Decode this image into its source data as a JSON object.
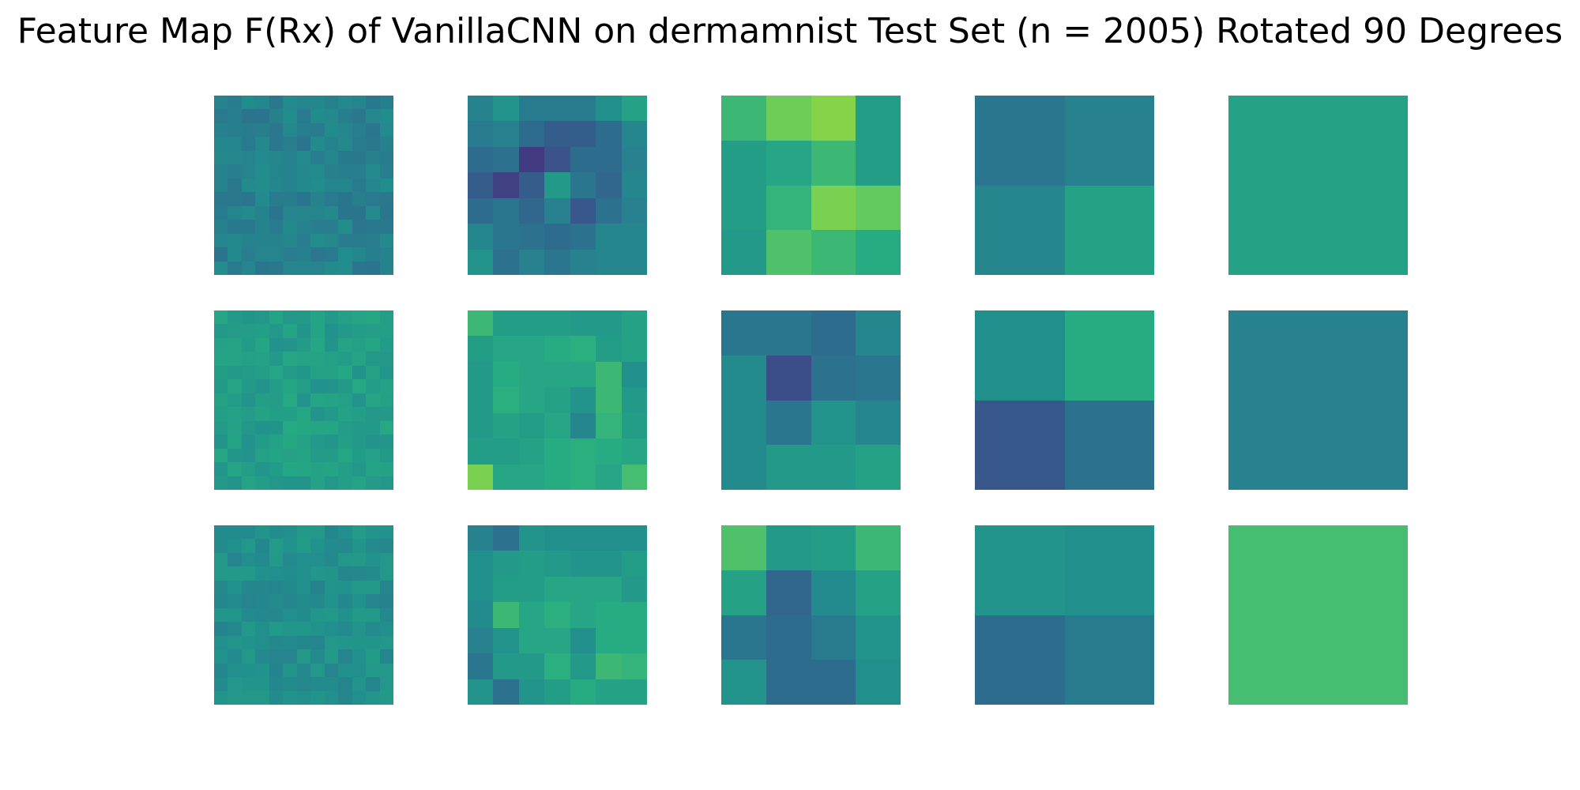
{
  "title": "Feature Map F(Rx) of VanillaCNN on dermamnist Test Set (n = 2005) Rotated 90 Degrees",
  "chart_data": {
    "type": "heatmap",
    "title": "Feature Map F(Rx) of VanillaCNN on dermamnist Test Set (n = 2005) Rotated 90 Degrees",
    "colormap": "viridis",
    "color_range": [
      0,
      1
    ],
    "grid": false,
    "axes_visible": false,
    "rows": 3,
    "cols": 5,
    "panels": [
      [
        {
          "size": 13,
          "base": 0.44,
          "var": 0.05,
          "seed": 1
        },
        {
          "size": 7,
          "base": 0.4,
          "var": 0.14,
          "seed": 2,
          "values": [
            [
              0.45,
              0.52,
              0.42,
              0.42,
              0.42,
              0.5,
              0.58
            ],
            [
              0.42,
              0.44,
              0.36,
              0.3,
              0.3,
              0.36,
              0.46
            ],
            [
              0.36,
              0.38,
              0.18,
              0.26,
              0.36,
              0.36,
              0.44
            ],
            [
              0.3,
              0.2,
              0.3,
              0.54,
              0.4,
              0.34,
              0.46
            ],
            [
              0.36,
              0.4,
              0.34,
              0.44,
              0.28,
              0.38,
              0.44
            ],
            [
              0.46,
              0.4,
              0.38,
              0.36,
              0.38,
              0.46,
              0.46
            ],
            [
              0.52,
              0.38,
              0.44,
              0.4,
              0.44,
              0.46,
              0.46
            ]
          ]
        },
        {
          "size": 4,
          "base": 0.6,
          "values": [
            [
              0.68,
              0.78,
              0.82,
              0.56
            ],
            [
              0.56,
              0.6,
              0.68,
              0.56
            ],
            [
              0.56,
              0.66,
              0.8,
              0.76
            ],
            [
              0.54,
              0.72,
              0.68,
              0.62
            ]
          ]
        },
        {
          "size": 2,
          "base": 0.4,
          "values": [
            [
              0.4,
              0.44
            ],
            [
              0.46,
              0.58
            ]
          ]
        },
        {
          "size": 1,
          "base": 0.58,
          "values": [
            [
              0.58
            ]
          ]
        }
      ],
      [
        {
          "size": 13,
          "base": 0.56,
          "var": 0.05,
          "seed": 11
        },
        {
          "size": 7,
          "base": 0.58,
          "var": 0.06,
          "seed": 12,
          "values": [
            [
              0.68,
              0.56,
              0.56,
              0.56,
              0.54,
              0.54,
              0.58
            ],
            [
              0.56,
              0.6,
              0.6,
              0.62,
              0.64,
              0.56,
              0.58
            ],
            [
              0.54,
              0.62,
              0.6,
              0.6,
              0.6,
              0.68,
              0.5
            ],
            [
              0.54,
              0.64,
              0.6,
              0.58,
              0.52,
              0.68,
              0.54
            ],
            [
              0.54,
              0.58,
              0.56,
              0.6,
              0.46,
              0.66,
              0.56
            ],
            [
              0.56,
              0.56,
              0.58,
              0.62,
              0.64,
              0.62,
              0.6
            ],
            [
              0.8,
              0.6,
              0.6,
              0.62,
              0.64,
              0.6,
              0.7
            ]
          ]
        },
        {
          "size": 4,
          "base": 0.42,
          "values": [
            [
              0.4,
              0.4,
              0.36,
              0.46
            ],
            [
              0.48,
              0.24,
              0.38,
              0.4
            ],
            [
              0.48,
              0.4,
              0.52,
              0.46
            ],
            [
              0.48,
              0.54,
              0.54,
              0.58
            ]
          ]
        },
        {
          "size": 2,
          "base": 0.45,
          "values": [
            [
              0.5,
              0.62
            ],
            [
              0.28,
              0.38
            ]
          ]
        },
        {
          "size": 1,
          "base": 0.44,
          "values": [
            [
              0.44
            ]
          ]
        }
      ],
      [
        {
          "size": 13,
          "base": 0.5,
          "var": 0.05,
          "seed": 21
        },
        {
          "size": 7,
          "base": 0.55,
          "var": 0.08,
          "seed": 22,
          "values": [
            [
              0.44,
              0.38,
              0.52,
              0.5,
              0.5,
              0.5,
              0.5
            ],
            [
              0.5,
              0.54,
              0.56,
              0.54,
              0.52,
              0.52,
              0.56
            ],
            [
              0.5,
              0.56,
              0.56,
              0.6,
              0.6,
              0.6,
              0.54
            ],
            [
              0.48,
              0.68,
              0.6,
              0.64,
              0.6,
              0.62,
              0.62
            ],
            [
              0.44,
              0.52,
              0.6,
              0.6,
              0.5,
              0.62,
              0.62
            ],
            [
              0.4,
              0.54,
              0.54,
              0.64,
              0.54,
              0.68,
              0.66
            ],
            [
              0.52,
              0.38,
              0.52,
              0.56,
              0.62,
              0.58,
              0.58
            ]
          ]
        },
        {
          "size": 4,
          "base": 0.5,
          "values": [
            [
              0.72,
              0.54,
              0.56,
              0.68
            ],
            [
              0.58,
              0.34,
              0.48,
              0.58
            ],
            [
              0.4,
              0.36,
              0.42,
              0.52
            ],
            [
              0.52,
              0.36,
              0.36,
              0.5
            ]
          ]
        },
        {
          "size": 2,
          "base": 0.45,
          "values": [
            [
              0.52,
              0.5
            ],
            [
              0.36,
              0.42
            ]
          ]
        },
        {
          "size": 1,
          "base": 0.7,
          "values": [
            [
              0.7
            ]
          ]
        }
      ]
    ]
  }
}
